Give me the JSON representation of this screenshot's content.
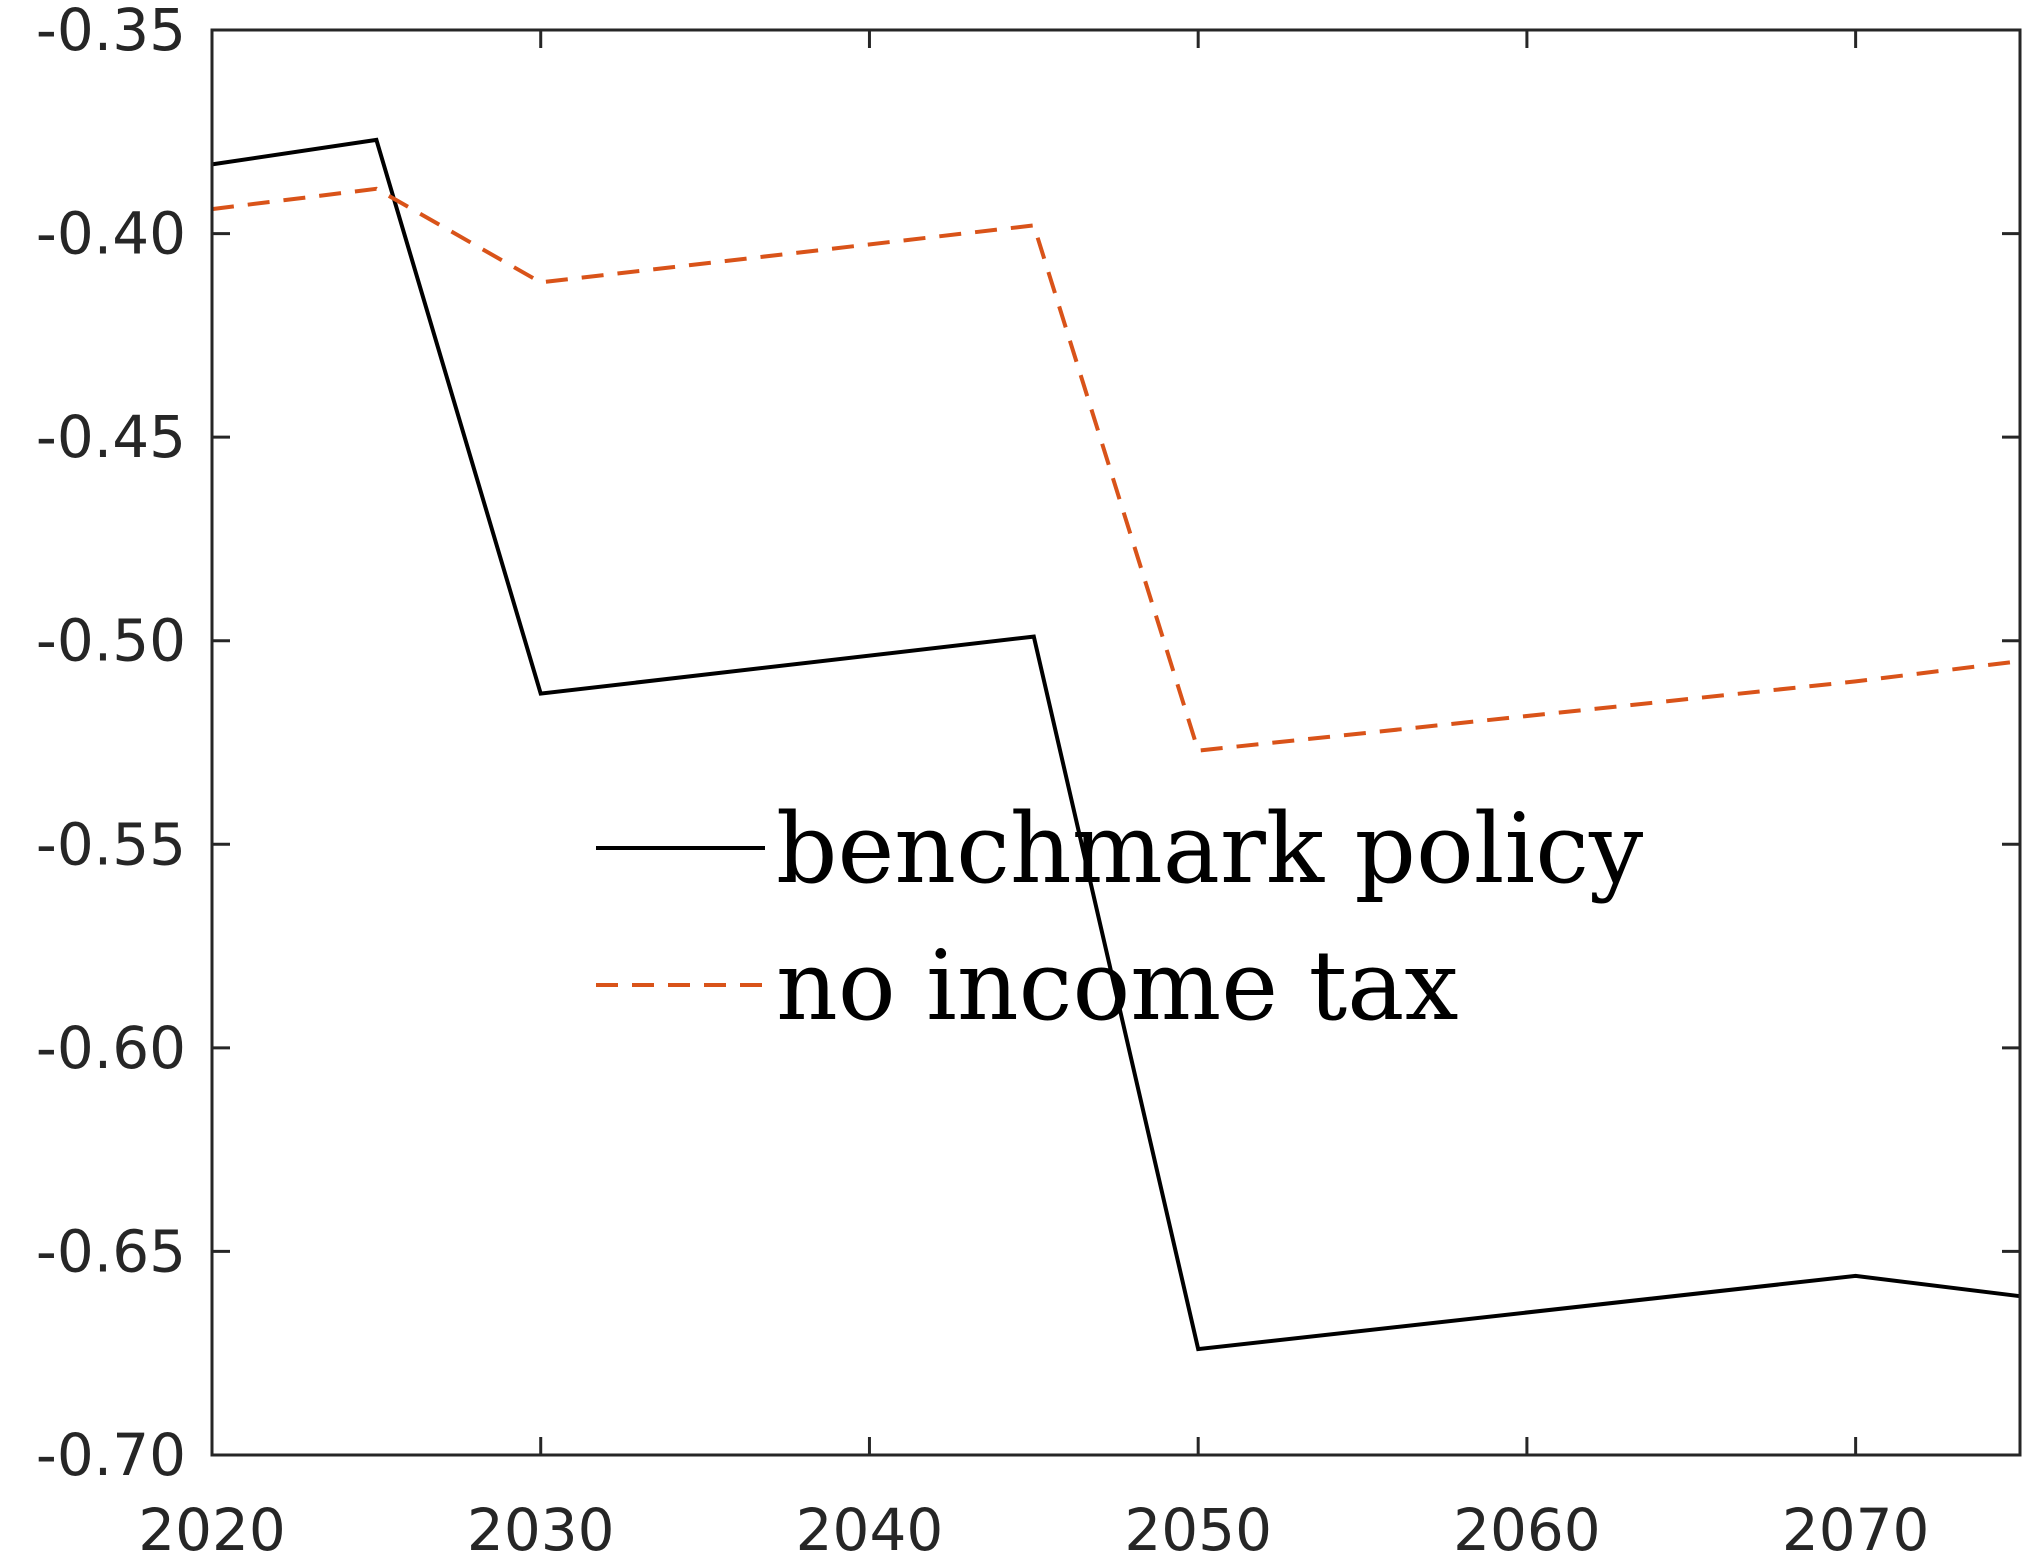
{
  "chart_data": {
    "type": "line",
    "title": "",
    "xlabel": "",
    "ylabel": "",
    "xlim": [
      2020,
      2075
    ],
    "ylim": [
      -0.7,
      -0.35
    ],
    "x_ticks": [
      2020,
      2030,
      2040,
      2050,
      2060,
      2070
    ],
    "x_tick_labels": [
      "2020",
      "2030",
      "2040",
      "2050",
      "2060",
      "2070"
    ],
    "y_ticks": [
      -0.35,
      -0.4,
      -0.45,
      -0.5,
      -0.55,
      -0.6,
      -0.65,
      -0.7
    ],
    "y_tick_labels": [
      "-0.35",
      "-0.40",
      "-0.45",
      "-0.50",
      "-0.55",
      "-0.60",
      "-0.65",
      "-0.70"
    ],
    "grid": false,
    "legend_position": "center",
    "series": [
      {
        "name": "benchmark policy",
        "color": "#000000",
        "style": "solid",
        "points": [
          [
            2020,
            -0.383
          ],
          [
            2025,
            -0.377
          ],
          [
            2030,
            -0.513
          ],
          [
            2045,
            -0.499
          ],
          [
            2050,
            -0.674
          ],
          [
            2070,
            -0.656
          ],
          [
            2075,
            -0.661
          ]
        ]
      },
      {
        "name": "no income tax",
        "color": "#D95319",
        "style": "dashed",
        "points": [
          [
            2020,
            -0.394
          ],
          [
            2025,
            -0.389
          ],
          [
            2030,
            -0.412
          ],
          [
            2045,
            -0.398
          ],
          [
            2050,
            -0.527
          ],
          [
            2070,
            -0.51
          ],
          [
            2075,
            -0.505
          ]
        ]
      }
    ]
  }
}
